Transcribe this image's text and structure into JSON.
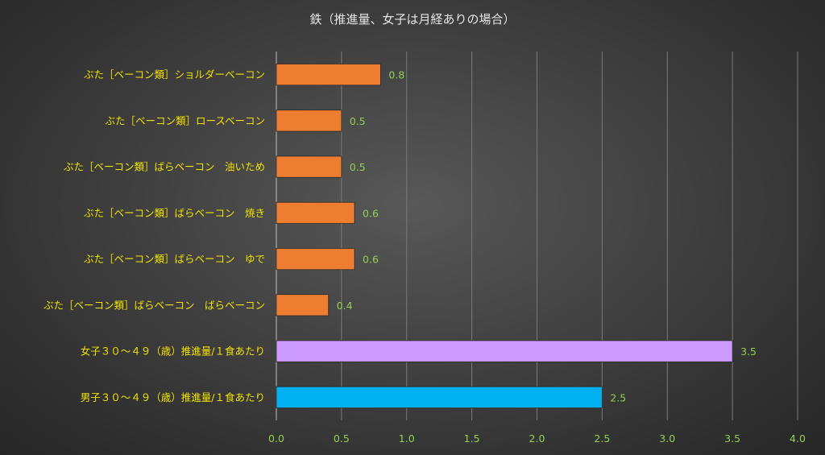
{
  "chart_data": {
    "type": "bar",
    "orientation": "horizontal",
    "title": "鉄（推進量、女子は月経ありの場合）",
    "xlabel": "",
    "ylabel": "",
    "xlim": [
      0,
      4.0
    ],
    "x_ticks": [
      "0.0",
      "0.5",
      "1.0",
      "1.5",
      "2.0",
      "2.5",
      "3.0",
      "3.5",
      "4.0"
    ],
    "grid": true,
    "legend": "none",
    "categories": [
      "ぶた［ベーコン類］ショルダーベーコン",
      "ぶた［ベーコン類］ロースベーコン",
      "ぶた［ベーコン類］ばらベーコン　油いため",
      "ぶた［ベーコン類］ばらベーコン　焼き",
      "ぶた［ベーコン類］ばらベーコン　ゆで",
      "ぶた［ベーコン類］ばらベーコン　ばらベーコン",
      "女子３０～４９（歳）推進量/１食あたり",
      "男子３０～４９（歳）推進量/１食あたり"
    ],
    "values": [
      0.8,
      0.5,
      0.5,
      0.6,
      0.6,
      0.4,
      3.5,
      2.5
    ],
    "value_labels": [
      "0.8",
      "0.5",
      "0.5",
      "0.6",
      "0.6",
      "0.4",
      "3.5",
      "2.5"
    ],
    "bar_colors": [
      "#ed7d31",
      "#ed7d31",
      "#ed7d31",
      "#ed7d31",
      "#ed7d31",
      "#ed7d31",
      "#cc99ff",
      "#00b0f0"
    ],
    "colors": {
      "title_text": "#e6e6e6",
      "category_text": "#f2e200",
      "tick_text": "#92d050",
      "data_label_text": "#92d050",
      "gridline": "#7a7a7a"
    }
  }
}
